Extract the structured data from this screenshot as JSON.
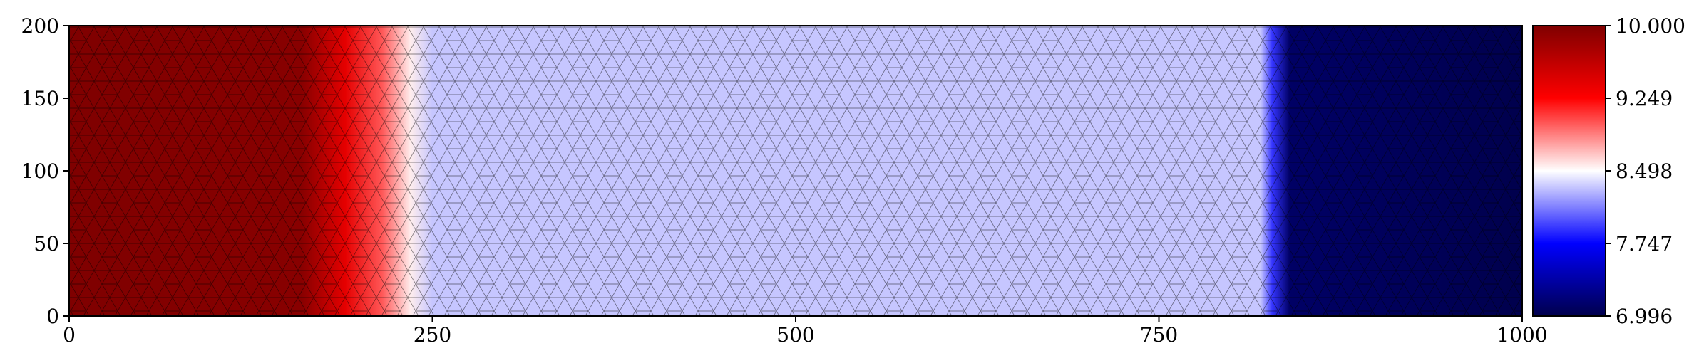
{
  "chart_data": {
    "type": "heatmap",
    "title": "",
    "xlabel": "",
    "ylabel": "",
    "xlim": [
      0,
      1000
    ],
    "ylim": [
      0,
      200
    ],
    "x_ticks": [
      0,
      250,
      500,
      750,
      1000
    ],
    "x_tick_labels": [
      "0",
      "250",
      "500",
      "750",
      "1000"
    ],
    "y_ticks": [
      0,
      50,
      100,
      150,
      200
    ],
    "y_tick_labels": [
      "0",
      "50",
      "100",
      "150",
      "200"
    ],
    "field_profile_along_x": [
      {
        "x": 0,
        "value": 10.0
      },
      {
        "x": 160,
        "value": 9.95
      },
      {
        "x": 190,
        "value": 9.4
      },
      {
        "x": 215,
        "value": 9.0
      },
      {
        "x": 235,
        "value": 8.55
      },
      {
        "x": 250,
        "value": 8.33
      },
      {
        "x": 820,
        "value": 8.33
      },
      {
        "x": 828,
        "value": 7.9
      },
      {
        "x": 840,
        "value": 7.1
      },
      {
        "x": 1000,
        "value": 7.0
      }
    ],
    "mesh": "unstructured triangular mesh overlay",
    "colormap": "seismic (dark red → red → white → blue → dark navy)",
    "colorbar": {
      "min": 6.996,
      "max": 10.0,
      "ticks": [
        10.0,
        9.249,
        8.498,
        7.747,
        6.996
      ],
      "tick_labels": [
        "10.000",
        "9.249",
        "8.498",
        "7.747",
        "6.996"
      ],
      "placement": "right"
    },
    "colors": {
      "dark_red": "#7f0000",
      "red": "#ff0000",
      "white": "#ffffff",
      "blue": "#0000ff",
      "dark_navy": "#00004c",
      "mesh_line": "#000000"
    },
    "grid": false,
    "legend": "none"
  }
}
